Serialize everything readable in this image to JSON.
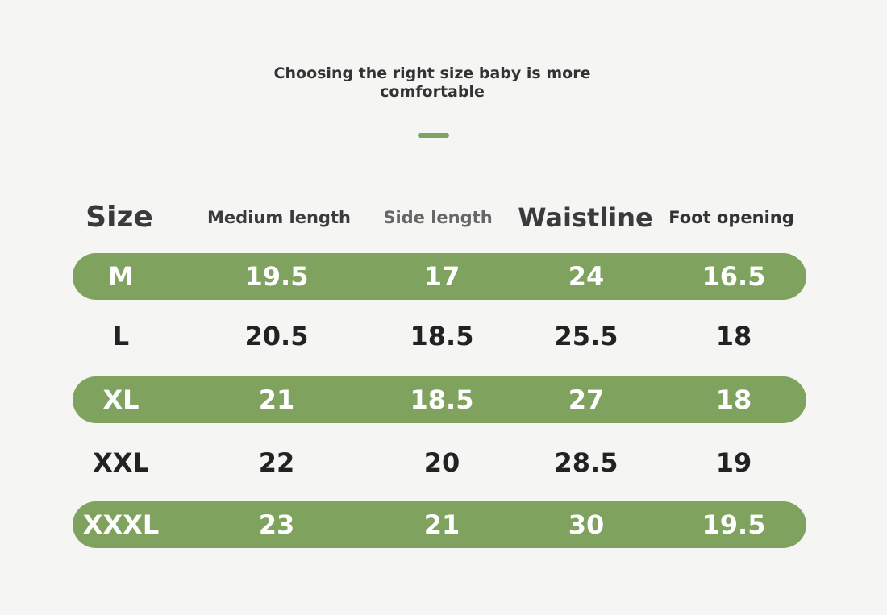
{
  "title": "Choosing the right size baby is more comfortable",
  "colors": {
    "accent_green": "#7fa35e",
    "background": "#f5f5f4",
    "text_dark": "#222222",
    "row_text_on_green": "#ffffff"
  },
  "table": {
    "headers": [
      "Size",
      "Medium length",
      "Side length",
      "Waistline",
      "Foot opening"
    ],
    "rows": [
      {
        "size": "M",
        "medium_length": "19.5",
        "side_length": "17",
        "waistline": "24",
        "foot_opening": "16.5",
        "highlighted": true
      },
      {
        "size": "L",
        "medium_length": "20.5",
        "side_length": "18.5",
        "waistline": "25.5",
        "foot_opening": "18",
        "highlighted": false
      },
      {
        "size": "XL",
        "medium_length": "21",
        "side_length": "18.5",
        "waistline": "27",
        "foot_opening": "18",
        "highlighted": true
      },
      {
        "size": "XXL",
        "medium_length": "22",
        "side_length": "20",
        "waistline": "28.5",
        "foot_opening": "19",
        "highlighted": false
      },
      {
        "size": "XXXL",
        "medium_length": "23",
        "side_length": "21",
        "waistline": "30",
        "foot_opening": "19.5",
        "highlighted": true
      }
    ]
  }
}
